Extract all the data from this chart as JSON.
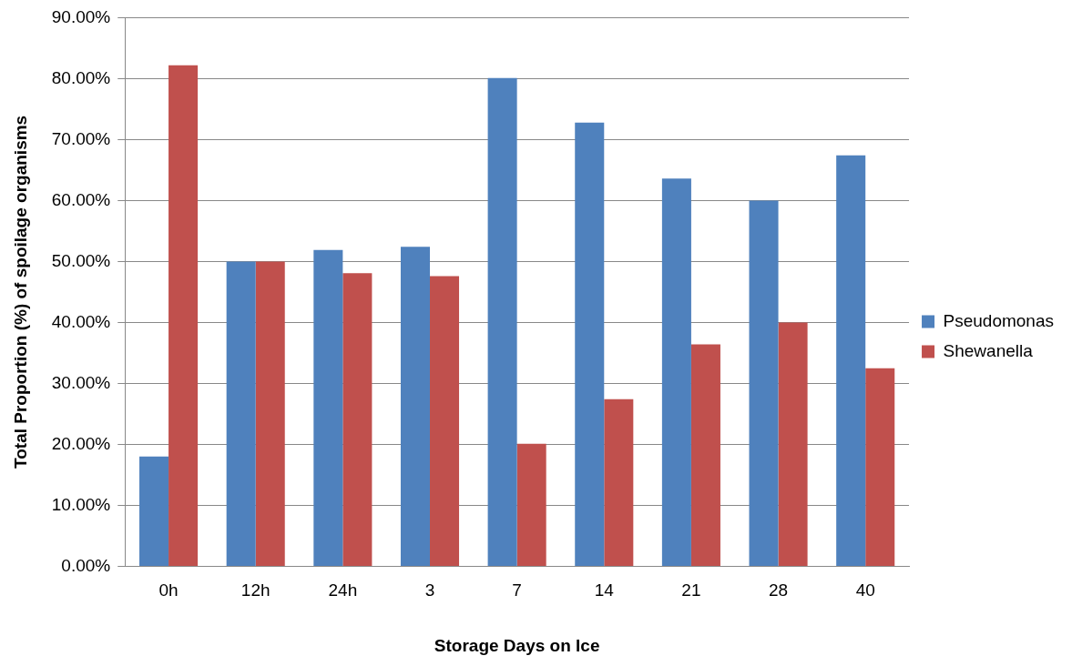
{
  "chart_data": {
    "type": "bar",
    "xlabel": "Storage Days on Ice",
    "ylabel": "Total Proportion (%) of spoilage organisms",
    "categories": [
      "0h",
      "12h",
      "24h",
      "3",
      "7",
      "14",
      "21",
      "28",
      "40"
    ],
    "series": [
      {
        "name": "Pseudomonas",
        "color": "#4f81bd",
        "values": [
          18.0,
          50.0,
          51.9,
          52.4,
          80.1,
          72.8,
          63.6,
          60.0,
          67.4
        ]
      },
      {
        "name": "Shewanella",
        "color": "#c0504d",
        "values": [
          82.2,
          50.0,
          48.1,
          47.6,
          20.1,
          27.4,
          36.4,
          40.0,
          32.5
        ]
      }
    ],
    "ylim": [
      0,
      90
    ],
    "yticks": [
      {
        "value": 0,
        "label": "0.00%"
      },
      {
        "value": 10,
        "label": "10.00%"
      },
      {
        "value": 20,
        "label": "20.00%"
      },
      {
        "value": 30,
        "label": "30.00%"
      },
      {
        "value": 40,
        "label": "40.00%"
      },
      {
        "value": 50,
        "label": "50.00%"
      },
      {
        "value": 60,
        "label": "60.00%"
      },
      {
        "value": 70,
        "label": "70.00%"
      },
      {
        "value": 80,
        "label": "80.00%"
      },
      {
        "value": 90,
        "label": "90.00%"
      }
    ],
    "grid": "y",
    "legend": "right"
  }
}
